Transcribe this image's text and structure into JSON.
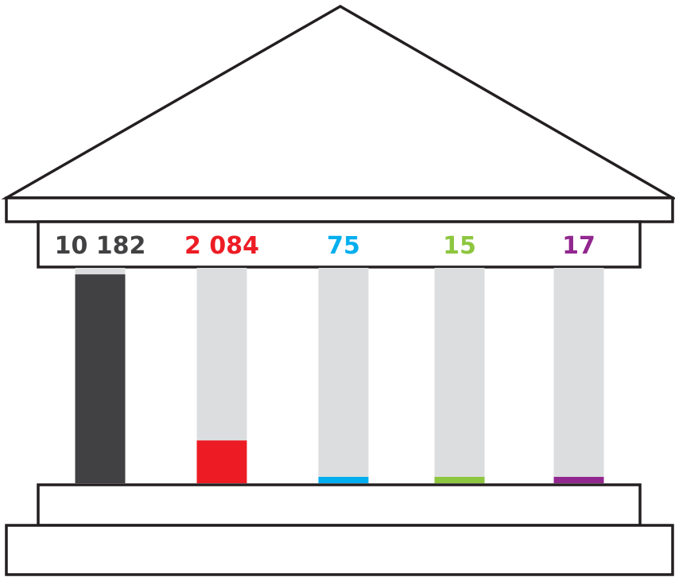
{
  "chart_data": {
    "type": "bar",
    "categories": [
      "",
      "",
      "",
      "",
      ""
    ],
    "values": [
      10182,
      2084,
      75,
      15,
      17
    ],
    "labels": [
      "10 182",
      "2 084",
      "75",
      "15",
      "17"
    ],
    "colors": [
      "#414042",
      "#ed1c24",
      "#00aeef",
      "#8dc63f",
      "#92278f"
    ],
    "ylim": [
      0,
      10500
    ],
    "column_track_color": "#dcdddf",
    "title": "",
    "xlabel": "",
    "ylabel": ""
  }
}
